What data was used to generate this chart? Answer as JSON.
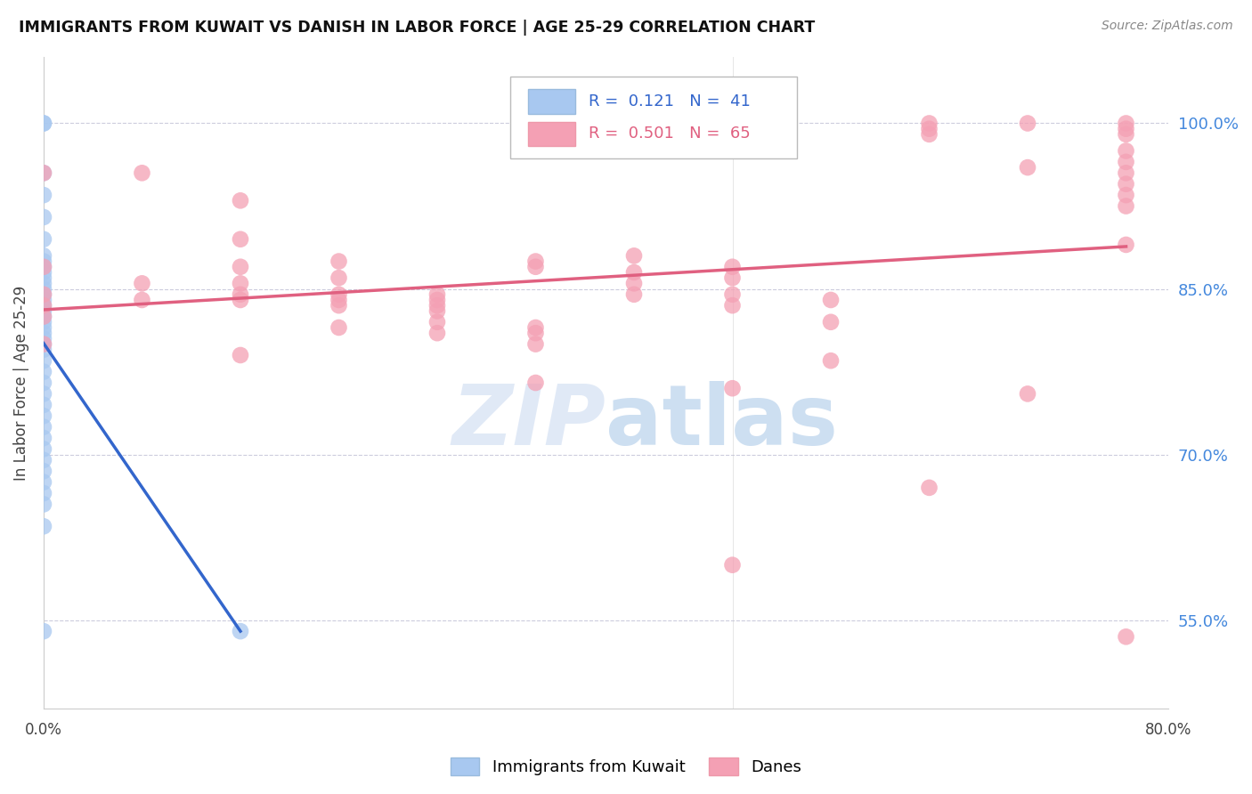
{
  "title": "IMMIGRANTS FROM KUWAIT VS DANISH IN LABOR FORCE | AGE 25-29 CORRELATION CHART",
  "source": "Source: ZipAtlas.com",
  "ylabel_label": "In Labor Force | Age 25-29",
  "yticks": [
    0.55,
    0.7,
    0.85,
    1.0
  ],
  "ytick_labels": [
    "55.0%",
    "70.0%",
    "85.0%",
    "100.0%"
  ],
  "xlim": [
    0.0,
    0.8
  ],
  "ylim": [
    0.47,
    1.06
  ],
  "blue_R": 0.121,
  "blue_N": 41,
  "pink_R": 0.501,
  "pink_N": 65,
  "blue_color": "#A8C8F0",
  "pink_color": "#F4A0B4",
  "blue_line_color": "#3366CC",
  "pink_line_color": "#E06080",
  "legend_label_blue": "Immigrants from Kuwait",
  "legend_label_pink": "Danes",
  "watermark_zip": "ZIP",
  "watermark_atlas": "atlas",
  "blue_points_x": [
    0.0,
    0.0,
    0.0,
    0.0,
    0.0,
    0.0,
    0.0,
    0.0,
    0.0,
    0.0,
    0.0,
    0.0,
    0.0,
    0.0,
    0.0,
    0.0,
    0.0,
    0.0,
    0.0,
    0.0,
    0.0,
    0.0,
    0.0,
    0.0,
    0.0,
    0.0,
    0.0,
    0.0,
    0.0,
    0.0,
    0.0,
    0.0,
    0.0,
    0.0,
    0.0,
    0.0,
    0.0,
    0.0,
    0.0,
    0.0,
    0.14
  ],
  "blue_points_y": [
    1.0,
    1.0,
    0.955,
    0.935,
    0.915,
    0.895,
    0.88,
    0.875,
    0.87,
    0.865,
    0.86,
    0.855,
    0.85,
    0.845,
    0.84,
    0.835,
    0.83,
    0.825,
    0.82,
    0.815,
    0.81,
    0.805,
    0.8,
    0.795,
    0.785,
    0.775,
    0.765,
    0.755,
    0.745,
    0.735,
    0.725,
    0.715,
    0.705,
    0.695,
    0.685,
    0.675,
    0.665,
    0.655,
    0.635,
    0.54,
    0.54
  ],
  "pink_points_x": [
    0.0,
    0.0,
    0.0,
    0.0,
    0.0,
    0.0,
    0.07,
    0.07,
    0.07,
    0.14,
    0.14,
    0.14,
    0.14,
    0.14,
    0.14,
    0.14,
    0.21,
    0.21,
    0.21,
    0.21,
    0.21,
    0.21,
    0.28,
    0.28,
    0.28,
    0.28,
    0.28,
    0.28,
    0.35,
    0.35,
    0.35,
    0.35,
    0.35,
    0.35,
    0.42,
    0.42,
    0.42,
    0.42,
    0.49,
    0.49,
    0.49,
    0.49,
    0.49,
    0.49,
    0.56,
    0.56,
    0.56,
    0.63,
    0.63,
    0.63,
    0.63,
    0.7,
    0.7,
    0.7,
    0.77,
    0.77,
    0.77,
    0.77,
    0.77,
    0.77,
    0.77,
    0.77,
    0.77,
    0.77,
    0.77
  ],
  "pink_points_y": [
    0.955,
    0.87,
    0.845,
    0.835,
    0.825,
    0.8,
    0.955,
    0.855,
    0.84,
    0.93,
    0.895,
    0.87,
    0.855,
    0.845,
    0.84,
    0.79,
    0.875,
    0.86,
    0.845,
    0.84,
    0.835,
    0.815,
    0.845,
    0.84,
    0.835,
    0.83,
    0.82,
    0.81,
    0.875,
    0.87,
    0.815,
    0.81,
    0.8,
    0.765,
    0.88,
    0.865,
    0.855,
    0.845,
    0.87,
    0.86,
    0.845,
    0.835,
    0.76,
    0.6,
    0.84,
    0.82,
    0.785,
    1.0,
    0.995,
    0.99,
    0.67,
    1.0,
    0.96,
    0.755,
    1.0,
    0.995,
    0.99,
    0.975,
    0.965,
    0.955,
    0.945,
    0.935,
    0.925,
    0.535,
    0.89
  ]
}
